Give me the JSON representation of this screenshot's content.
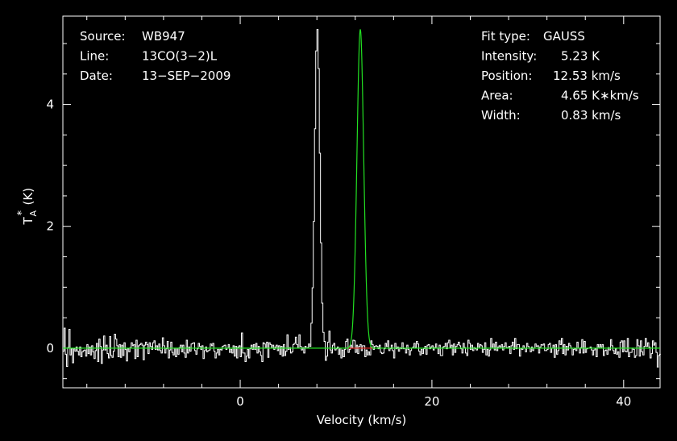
{
  "chart_data": {
    "type": "line",
    "title": "",
    "xlabel": "Velocity (km/s)",
    "ylabel_main": "T",
    "ylabel_sub": "A",
    "ylabel_sup": "*",
    "ylabel_unit": "(K)",
    "xlim": [
      -18.5,
      43.8
    ],
    "ylim": [
      -0.65,
      5.45
    ],
    "x_ticks": [
      0,
      20,
      40
    ],
    "y_ticks": [
      0,
      2,
      4
    ],
    "x_tick_labels": [
      "0",
      "20",
      "40"
    ],
    "y_tick_labels": [
      "0",
      "2",
      "4"
    ],
    "grid": false,
    "legend": "none",
    "header_left": [
      {
        "key": "Source:",
        "value": "WB947"
      },
      {
        "key": "Line:",
        "value": "13CO(3−2)L"
      },
      {
        "key": "Date:",
        "value": "13−SEP−2009"
      }
    ],
    "header_right": [
      {
        "key": "Fit type:",
        "value": "GAUSS"
      },
      {
        "key": "Intensity:",
        "value": "5.23 K"
      },
      {
        "key": "Position:",
        "value": "12.53 km/s"
      },
      {
        "key": "Area:",
        "value": "4.65 K∗km/s"
      },
      {
        "key": "Width:",
        "value": "0.83 km/s"
      }
    ],
    "fit": {
      "amplitude": 5.23,
      "center": 12.53,
      "fwhm": 0.83,
      "baseline_range": [
        11.3,
        13.8
      ]
    },
    "series": [
      {
        "x_start": -18.5,
        "x_step": 0.125,
        "style": "histogram",
        "values": [
          -0.05,
          0.33,
          -0.1,
          -0.3,
          0.01,
          0.31,
          -0.11,
          -0.01,
          -0.24,
          -0.01,
          -0.05,
          0.02,
          -0.05,
          -0.11,
          0.02,
          -0.14,
          -0.06,
          -0.04,
          -0.03,
          -0.13,
          0.06,
          -0.09,
          0.02,
          -0.11,
          0.04,
          -0.06,
          -0.17,
          -0.04,
          0.08,
          -0.22,
          0.15,
          0.03,
          -0.25,
          -0.03,
          0.2,
          -0.03,
          0.05,
          -0.09,
          -0.16,
          0.19,
          -0.12,
          -0.15,
          -0.05,
          0.23,
          0.15,
          0.04,
          -0.14,
          0.06,
          -0.15,
          0.05,
          -0.12,
          0.09,
          -0.02,
          -0.21,
          -0.01,
          -0.06,
          0.01,
          0.09,
          0.04,
          0.06,
          -0.17,
          0.13,
          -0.14,
          0.04,
          0.06,
          0.08,
          0.05,
          -0.19,
          0.05,
          0.1,
          0.06,
          -0.09,
          0.09,
          0.03,
          -0.02,
          0.09,
          0.12,
          -0.02,
          0.04,
          -0.03,
          0.07,
          -0.04,
          -0.08,
          0.17,
          0.04,
          -0.08,
          -0.01,
          0.11,
          -0.16,
          -0.03,
          0.1,
          -0.07,
          -0.11,
          0.0,
          -0.14,
          0.0,
          -0.1,
          0.01,
          0.05,
          -0.06,
          0.05,
          -0.08,
          -0.15,
          0.13,
          -0.08,
          0.02,
          -0.05,
          0.07,
          0.08,
          0.09,
          -0.04,
          -0.1,
          -0.01,
          0.08,
          0.03,
          -0.02,
          0.04,
          -0.17,
          -0.04,
          0.02,
          -0.06,
          -0.04,
          -0.03,
          0.07,
          0.04,
          0.08,
          -0.05,
          -0.16,
          -0.08,
          -0.02,
          -0.11,
          -0.02,
          -0.03,
          0.03,
          0.04,
          0.05,
          -0.02,
          0.0,
          0.06,
          -0.07,
          -0.02,
          -0.08,
          0.04,
          -0.13,
          0.03,
          -0.16,
          0.02,
          0.04,
          -0.14,
          0.25,
          -0.08,
          -0.08,
          -0.22,
          -0.13,
          -0.02,
          -0.16,
          -0.01,
          0.05,
          -0.02,
          0.06,
          -0.02,
          0.08,
          -0.08,
          0.03,
          -0.06,
          -0.12,
          -0.22,
          0.09,
          0.07,
          0.0,
          0.1,
          -0.15,
          0.09,
          0.06,
          0.0,
          0.05,
          -0.02,
          0.02,
          0.05,
          -0.04,
          0.04,
          -0.1,
          0.03,
          -0.13,
          0.06,
          -0.12,
          -0.05,
          0.22,
          -0.02,
          0.01,
          -0.08,
          -0.06,
          0.06,
          0.08,
          0.18,
          0.06,
          0.0,
          0.22,
          0.03,
          -0.03,
          0.01,
          -0.08,
          0.03,
          0.0,
          0.01,
          0.07,
          0.03,
          0.41,
          0.99,
          2.08,
          3.6,
          4.88,
          5.23,
          4.59,
          3.2,
          1.73,
          0.74,
          0.26,
          0.11,
          -0.2,
          -0.13,
          0.1,
          0.28,
          -0.03,
          -0.08,
          0.05,
          0.08,
          -0.03,
          -0.01,
          0.02,
          -0.1,
          0.0,
          -0.16,
          -0.03,
          -0.14,
          -0.02,
          0.11,
          0.15,
          -0.07,
          -0.02,
          0.05,
          0.01,
          0.13,
          0.12,
          -0.07,
          0.05,
          -0.09,
          0.03,
          0.06,
          -0.04,
          0.04,
          0.04,
          -0.14,
          -0.03,
          -0.11,
          -0.06,
          -0.11,
          0.12,
          0.06,
          -0.02,
          0.03,
          0.04,
          0.03,
          -0.01,
          0.05,
          -0.07,
          -0.09,
          -0.08,
          -0.01,
          0.08,
          0.03,
          0.12,
          -0.04,
          -0.01,
          0.05,
          -0.04,
          -0.16,
          0.08,
          -0.01,
          0.02,
          -0.05,
          0.01,
          -0.01,
          0.09,
          -0.01,
          0.0,
          -0.08,
          0.05,
          -0.02,
          -0.11,
          -0.04,
          -0.0,
          0.02,
          0.08,
          0.01,
          0.11,
          0.07,
          -0.05,
          -0.11,
          -0.02,
          -0.09,
          -0.01,
          0.03,
          -0.1,
          0.05,
          0.06,
          -0.01,
          0.02,
          0.04,
          -0.03,
          0.01,
          0.07,
          -0.0,
          -0.09,
          0.05,
          -0.12,
          -0.12,
          0.02,
          0.03,
          0.08,
          -0.01,
          0.09,
          0.13,
          0.01,
          0.05,
          -0.11,
          0.07,
          -0.07,
          0.03,
          0.06,
          0.1,
          0.04,
          -0.01,
          -0.08,
          0.08,
          0.01,
          -0.08,
          -0.12,
          0.13,
          0.08,
          -0.02,
          0.05,
          -0.04,
          0.01,
          -0.01,
          -0.03,
          0.08,
          0.02,
          0.06,
          0.04,
          -0.07,
          -0.02,
          0.09,
          -0.11,
          -0.02,
          -0.13,
          -0.03,
          0.16,
          0.02,
          0.07,
          -0.03,
          0.1,
          -0.04,
          0.02,
          0.04,
          0.02,
          0.06,
          -0.03,
          0.03,
          0.09,
          0.01,
          0.01,
          0.03,
          -0.09,
          0.04,
          0.1,
          -0.02,
          0.16,
          -0.01,
          0.06,
          0.06,
          -0.13,
          -0.01,
          -0.02,
          0.04,
          0.0,
          -0.06,
          0.08,
          0.03,
          0.0,
          -0.06,
          0.02,
          -0.04,
          -0.0,
          0.07,
          0.03,
          0.04,
          -0.08,
          0.02,
          0.06,
          0.05,
          0.07,
          -0.04,
          -0.04,
          -0.02,
          0.06,
          0.08,
          -0.07,
          -0.0,
          0.05,
          -0.15,
          0.06,
          -0.1,
          -0.04,
          0.12,
          0.06,
          0.16,
          -0.09,
          0.06,
          -0.11,
          0.03,
          -0.03,
          0.08,
          0.04,
          0.0,
          -0.11,
          -0.02,
          -0.01,
          -0.04,
          0.1,
          0.0,
          -0.08,
          0.01,
          0.14,
          -0.08,
          0.11,
          -0.07,
          -0.01,
          0.0,
          0.0,
          0.02,
          -0.03,
          -0.11,
          -0.03,
          -0.01,
          -0.14,
          0.06,
          0.02,
          0.06,
          0.02,
          0.06,
          -0.12,
          -0.04,
          -0.03,
          -0.1,
          0.01,
          -0.03,
          0.14,
          0.04,
          -0.04,
          -0.09,
          -0.01,
          -0.1,
          -0.06,
          -0.15,
          0.1,
          0.12,
          -0.06,
          0.12,
          -0.05,
          -0.06,
          0.16,
          -0.14,
          -0.07,
          -0.07,
          0.0,
          -0.02,
          -0.15,
          -0.12,
          0.14,
          0.04,
          -0.13,
          0.12,
          -0.06,
          -0.11,
          0.03,
          0.16,
          0.03,
          0.09,
          0.02,
          -0.16,
          -0.09,
          0.12,
          0.05,
          0.09,
          -0.07,
          -0.31,
          -0.12,
          -0.1
        ]
      }
    ],
    "colors": {
      "background": "#000000",
      "axes": "#ffffff",
      "spectrum": "#ffffff",
      "fit": "#22e022",
      "baseline": "#e02020"
    }
  }
}
